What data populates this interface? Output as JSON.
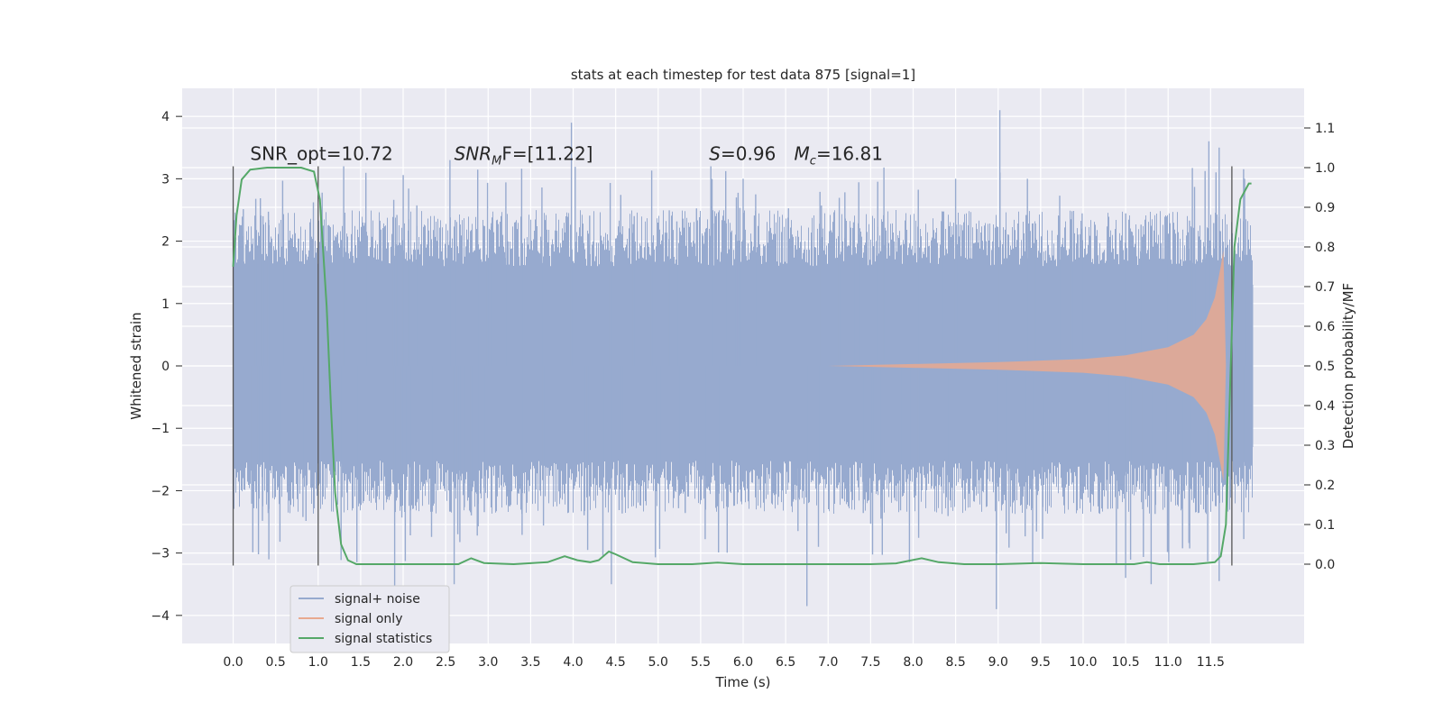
{
  "chart_data": {
    "type": "line",
    "title": "stats at each timestep for test data 875 [signal=1]",
    "xlabel": "Time (s)",
    "ylabel": "Whitened strain",
    "ylabel_right": "Detection probability/MF",
    "xlim": [
      -0.6,
      12.6
    ],
    "ylim": [
      -4.45,
      4.45
    ],
    "ylim_right": [
      -0.2,
      1.2
    ],
    "x_ticks": [
      0.0,
      0.5,
      1.0,
      1.5,
      2.0,
      2.5,
      3.0,
      3.5,
      4.0,
      4.5,
      5.0,
      5.5,
      6.0,
      6.5,
      7.0,
      7.5,
      8.0,
      8.5,
      9.0,
      9.5,
      10.0,
      10.5,
      11.0,
      11.5
    ],
    "x_tick_labels": [
      "0.0",
      "0.5",
      "1.0",
      "1.5",
      "2.0",
      "2.5",
      "3.0",
      "3.5",
      "4.0",
      "4.5",
      "5.0",
      "5.5",
      "6.0",
      "6.5",
      "7.0",
      "7.5",
      "8.0",
      "8.5",
      "9.0",
      "9.5",
      "10.0",
      "10.5",
      "11.0",
      "11.5"
    ],
    "y_ticks": [
      4,
      3,
      2,
      1,
      0,
      -1,
      -2,
      -3,
      -4
    ],
    "y_tick_labels": [
      "4",
      "3",
      "2",
      "1",
      "0",
      "−1",
      "−2",
      "−3",
      "−4"
    ],
    "y_ticks_right": [
      1.1,
      1.0,
      0.9,
      0.8,
      0.7,
      0.6,
      0.5,
      0.4,
      0.3,
      0.2,
      0.1,
      0.0
    ],
    "y_tick_labels_right": [
      "1.1",
      "1.0",
      "0.9",
      "0.8",
      "0.7",
      "0.6",
      "0.5",
      "0.4",
      "0.3",
      "0.2",
      "0.1",
      "0.0"
    ],
    "grid": true,
    "legend_position": "lower-left",
    "series": [
      {
        "name": "signal+ noise",
        "color": "#97aacf",
        "x_range": [
          0.0,
          12.0
        ],
        "typical_envelope": [
          -1.9,
          2.0
        ],
        "dense_band": [
          -1.3,
          1.3
        ],
        "peaks": [
          [
            3.98,
            3.9
          ],
          [
            9.02,
            4.1
          ],
          [
            4.45,
            -3.5
          ],
          [
            6.75,
            -3.85
          ],
          [
            8.98,
            -3.9
          ],
          [
            11.6,
            -3.45
          ],
          [
            11.48,
            3.6
          ],
          [
            11.6,
            3.5
          ],
          [
            1.9,
            -3.6
          ],
          [
            2.6,
            -3.5
          ],
          [
            5.62,
            3.2
          ],
          [
            0.42,
            -3.1
          ],
          [
            10.5,
            -3.4
          ],
          [
            10.8,
            -3.5
          ],
          [
            2.55,
            3.3
          ],
          [
            1.3,
            3.2
          ],
          [
            6.0,
            3.0
          ],
          [
            8.5,
            3.0
          ],
          [
            11.9,
            3.0
          ]
        ]
      },
      {
        "name": "signal only",
        "color": "#e8a98f",
        "points": [
          [
            7.0,
            0.0
          ],
          [
            8.0,
            0.03
          ],
          [
            9.0,
            0.06
          ],
          [
            10.0,
            0.11
          ],
          [
            10.5,
            0.17
          ],
          [
            11.0,
            0.3
          ],
          [
            11.3,
            0.5
          ],
          [
            11.45,
            0.75
          ],
          [
            11.55,
            1.1
          ],
          [
            11.62,
            1.6
          ],
          [
            11.65,
            1.85
          ],
          [
            11.68,
            0.0
          ]
        ]
      },
      {
        "name": "signal statistics",
        "axis": "right",
        "color": "#55a868",
        "points": [
          [
            0.0,
            0.75
          ],
          [
            0.04,
            0.88
          ],
          [
            0.1,
            0.97
          ],
          [
            0.2,
            0.995
          ],
          [
            0.4,
            1.0
          ],
          [
            0.8,
            1.0
          ],
          [
            0.95,
            0.99
          ],
          [
            1.02,
            0.92
          ],
          [
            1.1,
            0.65
          ],
          [
            1.15,
            0.4
          ],
          [
            1.2,
            0.18
          ],
          [
            1.27,
            0.05
          ],
          [
            1.35,
            0.01
          ],
          [
            1.45,
            0.0
          ],
          [
            2.0,
            0.0
          ],
          [
            2.65,
            0.0
          ],
          [
            2.8,
            0.015
          ],
          [
            2.95,
            0.003
          ],
          [
            3.3,
            0.0
          ],
          [
            3.7,
            0.005
          ],
          [
            3.9,
            0.02
          ],
          [
            4.05,
            0.01
          ],
          [
            4.2,
            0.005
          ],
          [
            4.3,
            0.01
          ],
          [
            4.42,
            0.032
          ],
          [
            4.5,
            0.025
          ],
          [
            4.7,
            0.005
          ],
          [
            5.0,
            0.0
          ],
          [
            5.4,
            0.0
          ],
          [
            5.7,
            0.004
          ],
          [
            6.0,
            0.0
          ],
          [
            7.0,
            0.0
          ],
          [
            7.5,
            0.0
          ],
          [
            7.8,
            0.002
          ],
          [
            8.1,
            0.015
          ],
          [
            8.3,
            0.005
          ],
          [
            8.6,
            0.0
          ],
          [
            9.0,
            0.0
          ],
          [
            9.5,
            0.003
          ],
          [
            10.0,
            0.0
          ],
          [
            10.6,
            0.0
          ],
          [
            10.75,
            0.005
          ],
          [
            10.9,
            0.0
          ],
          [
            11.3,
            0.0
          ],
          [
            11.55,
            0.005
          ],
          [
            11.62,
            0.02
          ],
          [
            11.68,
            0.1
          ],
          [
            11.73,
            0.45
          ],
          [
            11.78,
            0.8
          ],
          [
            11.85,
            0.92
          ],
          [
            11.95,
            0.96
          ],
          [
            11.98,
            0.96
          ]
        ]
      }
    ],
    "vertical_lines": [
      0.0,
      1.0,
      11.75
    ],
    "annotations": [
      {
        "text": "SNR_opt=10.72",
        "x": 0.2,
        "y": 3.3
      },
      {
        "base": "SNR",
        "sub": "M",
        "tail": "F=[11.22]",
        "x": 2.6,
        "y": 3.3
      },
      {
        "base": "S",
        "tail": "=0.96",
        "x": 5.6,
        "y": 3.3
      },
      {
        "base": "M",
        "sub": "c",
        "tail": "=16.81",
        "x": 6.6,
        "y": 3.3
      }
    ]
  }
}
